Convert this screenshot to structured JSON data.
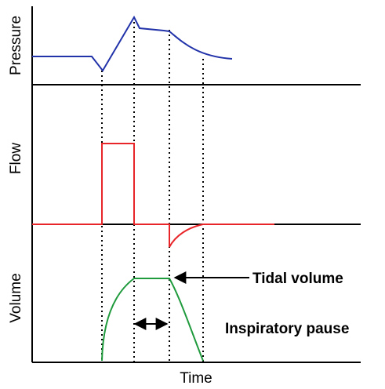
{
  "labels": {
    "pressure": "Pressure",
    "flow": "Flow",
    "volume": "Volume",
    "time": "Time",
    "tidal_volume": "Tidal volume",
    "inspiratory_pause": "Inspiratory pause"
  },
  "colors": {
    "pressure": "#2233aa",
    "flow": "#e8262a",
    "volume": "#1f9a3c",
    "axis": "#000000",
    "guide": "#000000"
  }
}
